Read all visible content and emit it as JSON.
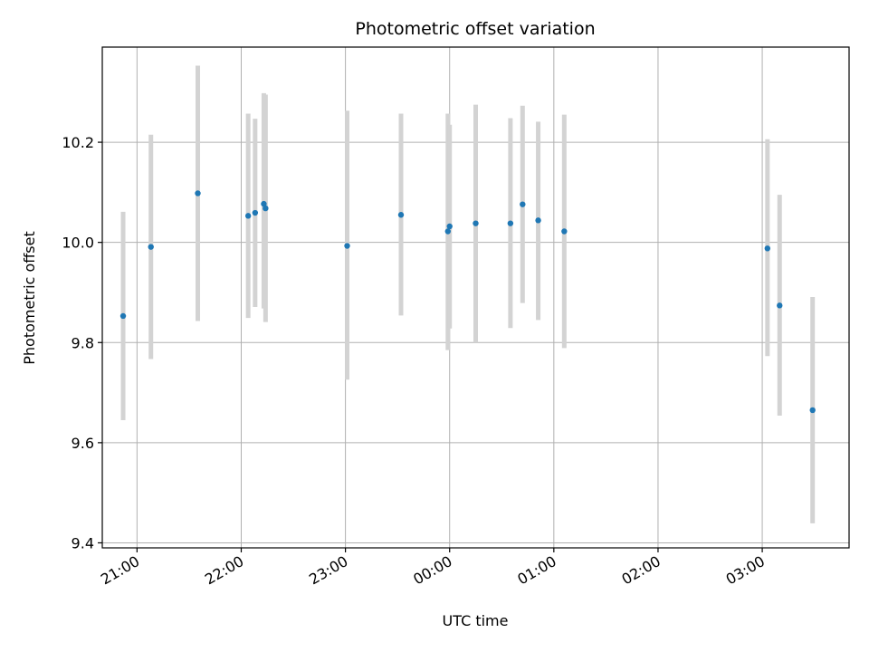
{
  "chart_data": {
    "type": "scatter",
    "title": "Photometric offset variation",
    "xlabel": "UTC time",
    "ylabel": "Photometric offset",
    "x_unit": "hours UTC (continuing past midnight)",
    "xlim": [
      "20:40",
      "03:50"
    ],
    "ylim": [
      9.39,
      10.39
    ],
    "x_ticks": [
      "21:00",
      "22:00",
      "23:00",
      "00:00",
      "01:00",
      "02:00",
      "03:00"
    ],
    "y_ticks": [
      "9.4",
      "9.6",
      "9.8",
      "10.0",
      "10.2"
    ],
    "grid": true,
    "points": [
      {
        "time": "20:52",
        "value": 9.853,
        "error_low": 9.645,
        "error_high": 10.061
      },
      {
        "time": "21:08",
        "value": 9.991,
        "error_low": 9.767,
        "error_high": 10.215
      },
      {
        "time": "21:35",
        "value": 10.098,
        "error_low": 9.843,
        "error_high": 10.353
      },
      {
        "time": "22:04",
        "value": 10.053,
        "error_low": 9.849,
        "error_high": 10.257
      },
      {
        "time": "22:08",
        "value": 10.059,
        "error_low": 9.871,
        "error_high": 10.247
      },
      {
        "time": "22:13",
        "value": 10.077,
        "error_low": 9.868,
        "error_high": 10.298
      },
      {
        "time": "22:14",
        "value": 10.068,
        "error_low": 9.841,
        "error_high": 10.295
      },
      {
        "time": "23:01",
        "value": 9.993,
        "error_low": 9.726,
        "error_high": 10.263
      },
      {
        "time": "23:32",
        "value": 10.055,
        "error_low": 9.854,
        "error_high": 10.257
      },
      {
        "time": "23:59",
        "value": 10.022,
        "error_low": 9.785,
        "error_high": 10.257
      },
      {
        "time": "00:00",
        "value": 10.032,
        "error_low": 9.828,
        "error_high": 10.235
      },
      {
        "time": "00:15",
        "value": 10.038,
        "error_low": 9.8,
        "error_high": 10.275
      },
      {
        "time": "00:35",
        "value": 10.038,
        "error_low": 9.829,
        "error_high": 10.248
      },
      {
        "time": "00:42",
        "value": 10.076,
        "error_low": 9.879,
        "error_high": 10.273
      },
      {
        "time": "00:51",
        "value": 10.044,
        "error_low": 9.845,
        "error_high": 10.241
      },
      {
        "time": "01:06",
        "value": 10.022,
        "error_low": 9.789,
        "error_high": 10.255
      },
      {
        "time": "03:03",
        "value": 9.988,
        "error_low": 9.773,
        "error_high": 10.206
      },
      {
        "time": "03:10",
        "value": 9.874,
        "error_low": 9.654,
        "error_high": 10.095
      },
      {
        "time": "03:29",
        "value": 9.665,
        "error_low": 9.439,
        "error_high": 9.891
      }
    ],
    "colors": {
      "marker": "#1f77b4",
      "errorbar": "#d3d3d3",
      "grid": "#b0b0b0",
      "axes": "#000000"
    }
  }
}
